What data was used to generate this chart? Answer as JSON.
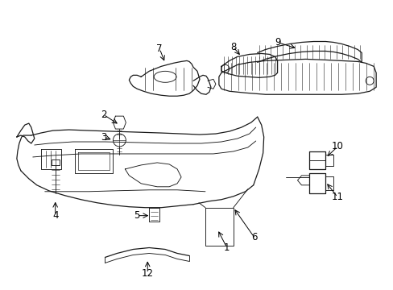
{
  "background_color": "#ffffff",
  "line_color": "#1a1a1a",
  "label_fontsize": 8.5,
  "figsize": [
    4.89,
    3.6
  ],
  "dpi": 100
}
